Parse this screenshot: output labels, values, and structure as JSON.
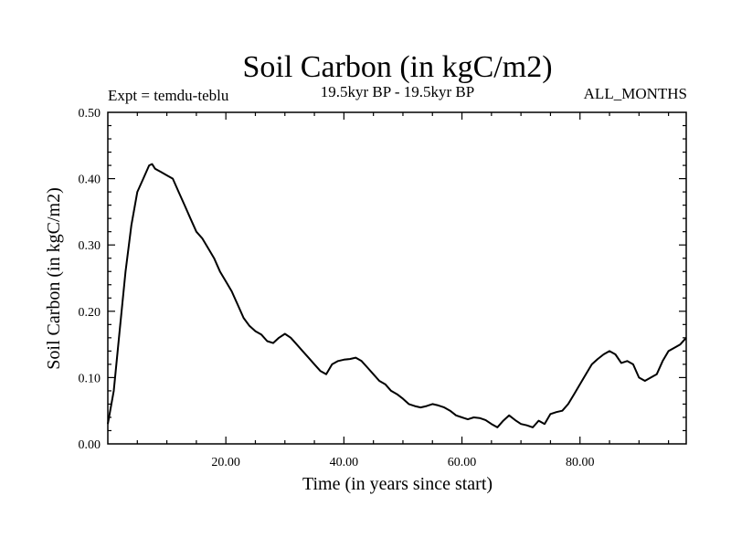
{
  "chart_data": {
    "type": "line",
    "title": "Soil Carbon (in kgC/m2)",
    "experiment": "Expt = temdu-teblu",
    "period": "19.5kyr BP - 19.5kyr BP",
    "months": "ALL_MONTHS",
    "xlabel": "Time (in years since start)",
    "ylabel": "Soil Carbon (in kgC/m2)",
    "xlim": [
      0,
      98
    ],
    "ylim": [
      0,
      0.5
    ],
    "xticks": [
      {
        "value": 20,
        "label": "20.00"
      },
      {
        "value": 40,
        "label": "40.00"
      },
      {
        "value": 60,
        "label": "60.00"
      },
      {
        "value": 80,
        "label": "80.00"
      }
    ],
    "yticks": [
      {
        "value": 0.0,
        "label": "0.00"
      },
      {
        "value": 0.1,
        "label": "0.10"
      },
      {
        "value": 0.2,
        "label": "0.20"
      },
      {
        "value": 0.3,
        "label": "0.30"
      },
      {
        "value": 0.4,
        "label": "0.40"
      },
      {
        "value": 0.5,
        "label": "0.50"
      }
    ],
    "series": [
      {
        "name": "Soil Carbon",
        "color": "#000000",
        "x": [
          0,
          1,
          2,
          3,
          4,
          5,
          6,
          7,
          7.5,
          8,
          9,
          10,
          11,
          12,
          13,
          14,
          15,
          16,
          17,
          18,
          19,
          20,
          21,
          22,
          23,
          24,
          25,
          26,
          27,
          28,
          29,
          30,
          31,
          32,
          33,
          34,
          35,
          36,
          37,
          38,
          39,
          40,
          41,
          42,
          43,
          44,
          45,
          46,
          47,
          48,
          49,
          50,
          51,
          52,
          53,
          54,
          55,
          56,
          57,
          58,
          59,
          60,
          61,
          62,
          63,
          64,
          65,
          66,
          67,
          68,
          69,
          70,
          71,
          72,
          73,
          74,
          75,
          76,
          77,
          78,
          79,
          80,
          81,
          82,
          83,
          84,
          85,
          86,
          87,
          88,
          89,
          90,
          91,
          92,
          93,
          94,
          95,
          96,
          97,
          98
        ],
        "y": [
          0.03,
          0.08,
          0.17,
          0.26,
          0.33,
          0.38,
          0.4,
          0.42,
          0.422,
          0.415,
          0.41,
          0.405,
          0.4,
          0.38,
          0.36,
          0.34,
          0.32,
          0.31,
          0.295,
          0.28,
          0.26,
          0.245,
          0.23,
          0.21,
          0.19,
          0.178,
          0.17,
          0.165,
          0.155,
          0.152,
          0.16,
          0.166,
          0.16,
          0.15,
          0.14,
          0.13,
          0.12,
          0.11,
          0.105,
          0.12,
          0.125,
          0.127,
          0.128,
          0.13,
          0.125,
          0.115,
          0.105,
          0.095,
          0.09,
          0.08,
          0.075,
          0.068,
          0.06,
          0.057,
          0.055,
          0.057,
          0.06,
          0.058,
          0.055,
          0.05,
          0.043,
          0.04,
          0.037,
          0.04,
          0.039,
          0.036,
          0.03,
          0.025,
          0.035,
          0.043,
          0.036,
          0.03,
          0.028,
          0.025,
          0.035,
          0.03,
          0.045,
          0.048,
          0.05,
          0.06,
          0.075,
          0.09,
          0.105,
          0.12,
          0.128,
          0.135,
          0.14,
          0.135,
          0.122,
          0.125,
          0.12,
          0.1,
          0.095,
          0.1,
          0.105,
          0.125,
          0.14,
          0.145,
          0.15,
          0.16
        ]
      }
    ]
  }
}
